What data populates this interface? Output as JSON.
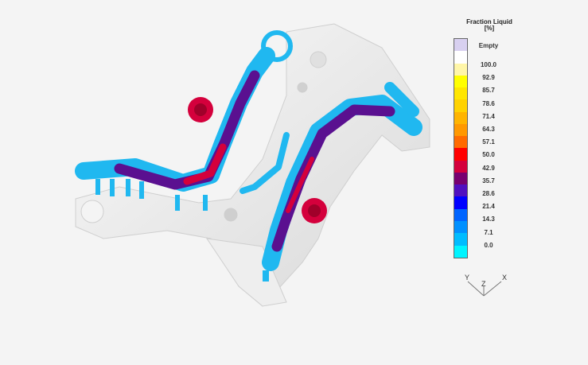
{
  "legend": {
    "title": "Fraction Liquid",
    "unit": "[%]",
    "labels": [
      "Empty",
      "100.0",
      "92.9",
      "85.7",
      "78.6",
      "71.4",
      "64.3",
      "57.1",
      "50.0",
      "42.9",
      "35.7",
      "28.6",
      "21.4",
      "14.3",
      "7.1",
      "0.0"
    ],
    "colors": [
      "#d8d0f0",
      "#ffffff",
      "#fff6a8",
      "#ffff00",
      "#ffe600",
      "#ffd200",
      "#ffb400",
      "#ff9800",
      "#ff6a00",
      "#ff0000",
      "#d4003c",
      "#780070",
      "#5010c0",
      "#0000ff",
      "#0064ff",
      "#0090ff",
      "#00bcff",
      "#00f4ff"
    ]
  },
  "axes": {
    "x": "X",
    "y": "Y",
    "z": "Z"
  },
  "colors": {
    "part": "#e6e6e6",
    "hot": "#d4003c",
    "mid": "#5a1090",
    "cold": "#20b8f0"
  }
}
